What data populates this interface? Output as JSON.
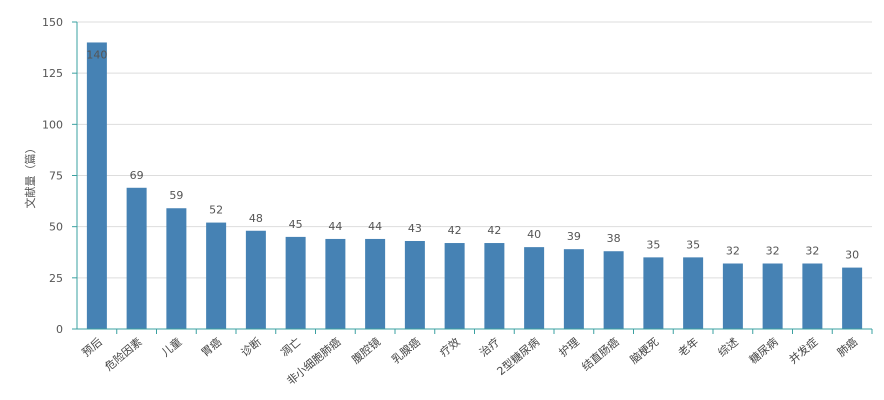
{
  "chart_data": {
    "type": "bar",
    "title": "",
    "xlabel": "",
    "ylabel": "文献量（篇）",
    "ylim": [
      0,
      150
    ],
    "yticks": [
      0,
      25,
      50,
      75,
      100,
      125,
      150
    ],
    "grid": true,
    "bar_color": "#4682b4",
    "axis_color": "#3aa0a0",
    "categories": [
      "预后",
      "危险因素",
      "儿童",
      "胃癌",
      "诊断",
      "凋亡",
      "非小细胞肺癌",
      "腹腔镜",
      "乳腺癌",
      "疗效",
      "治疗",
      "2型糖尿病",
      "护理",
      "结直肠癌",
      "脑梗死",
      "老年",
      "综述",
      "糖尿病",
      "并发症",
      "肺癌"
    ],
    "values": [
      140,
      69,
      59,
      52,
      48,
      45,
      44,
      44,
      43,
      42,
      42,
      40,
      39,
      38,
      35,
      35,
      32,
      32,
      32,
      30
    ]
  }
}
